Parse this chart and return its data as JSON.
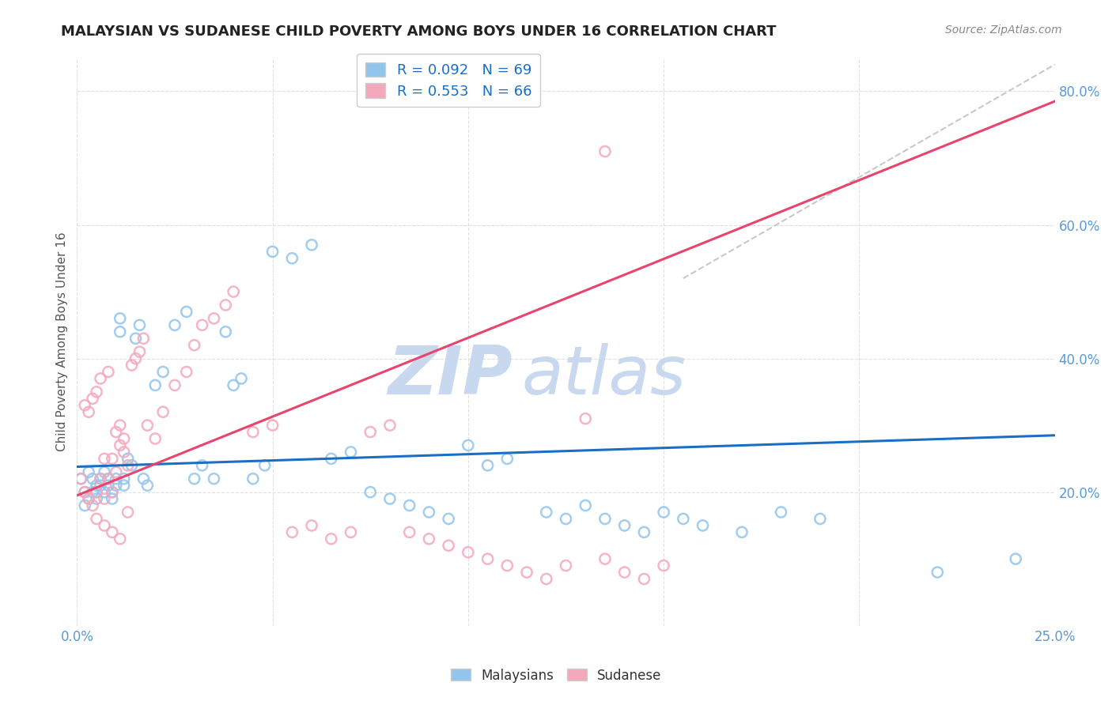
{
  "title": "MALAYSIAN VS SUDANESE CHILD POVERTY AMONG BOYS UNDER 16 CORRELATION CHART",
  "source": "Source: ZipAtlas.com",
  "ylabel": "Child Poverty Among Boys Under 16",
  "ytick_labels": [
    "20.0%",
    "40.0%",
    "60.0%",
    "80.0%"
  ],
  "ytick_values": [
    0.2,
    0.4,
    0.6,
    0.8
  ],
  "xlim": [
    0.0,
    0.25
  ],
  "ylim": [
    0.0,
    0.85
  ],
  "R_malaysian": 0.092,
  "N_malaysian": 69,
  "R_sudanese": 0.553,
  "N_sudanese": 66,
  "color_malaysian": "#92C5EC",
  "color_sudanese": "#F4A8BC",
  "line_color_malaysian": "#1a6fc4",
  "line_color_sudanese": "#e8446e",
  "line_color_diagonal": "#bbbbbb",
  "watermark_zip_color": "#c8d8ee",
  "watermark_atlas_color": "#c8d8ee",
  "background_color": "#ffffff",
  "malaysian_x": [
    0.001,
    0.002,
    0.002,
    0.003,
    0.003,
    0.004,
    0.004,
    0.005,
    0.005,
    0.005,
    0.006,
    0.006,
    0.007,
    0.007,
    0.008,
    0.008,
    0.009,
    0.009,
    0.01,
    0.01,
    0.011,
    0.011,
    0.012,
    0.012,
    0.013,
    0.014,
    0.015,
    0.016,
    0.017,
    0.018,
    0.02,
    0.022,
    0.025,
    0.028,
    0.03,
    0.032,
    0.035,
    0.038,
    0.04,
    0.042,
    0.045,
    0.048,
    0.05,
    0.055,
    0.06,
    0.065,
    0.07,
    0.075,
    0.08,
    0.085,
    0.09,
    0.095,
    0.1,
    0.105,
    0.11,
    0.12,
    0.125,
    0.13,
    0.135,
    0.14,
    0.145,
    0.15,
    0.155,
    0.16,
    0.17,
    0.18,
    0.19,
    0.22,
    0.24
  ],
  "malaysian_y": [
    0.22,
    0.2,
    0.18,
    0.23,
    0.19,
    0.22,
    0.2,
    0.21,
    0.2,
    0.19,
    0.22,
    0.21,
    0.23,
    0.2,
    0.22,
    0.21,
    0.2,
    0.19,
    0.22,
    0.21,
    0.44,
    0.46,
    0.22,
    0.21,
    0.25,
    0.24,
    0.43,
    0.45,
    0.22,
    0.21,
    0.36,
    0.38,
    0.45,
    0.47,
    0.22,
    0.24,
    0.22,
    0.44,
    0.36,
    0.37,
    0.22,
    0.24,
    0.56,
    0.55,
    0.57,
    0.25,
    0.26,
    0.2,
    0.19,
    0.18,
    0.17,
    0.16,
    0.27,
    0.24,
    0.25,
    0.17,
    0.16,
    0.18,
    0.16,
    0.15,
    0.14,
    0.17,
    0.16,
    0.15,
    0.14,
    0.17,
    0.16,
    0.08,
    0.1
  ],
  "sudanese_x": [
    0.001,
    0.002,
    0.002,
    0.003,
    0.003,
    0.004,
    0.004,
    0.005,
    0.005,
    0.006,
    0.006,
    0.007,
    0.007,
    0.008,
    0.008,
    0.009,
    0.009,
    0.01,
    0.01,
    0.011,
    0.011,
    0.012,
    0.012,
    0.013,
    0.014,
    0.015,
    0.016,
    0.017,
    0.018,
    0.02,
    0.022,
    0.025,
    0.028,
    0.03,
    0.032,
    0.035,
    0.038,
    0.04,
    0.045,
    0.05,
    0.055,
    0.06,
    0.065,
    0.07,
    0.075,
    0.08,
    0.085,
    0.09,
    0.095,
    0.1,
    0.105,
    0.11,
    0.115,
    0.12,
    0.125,
    0.13,
    0.135,
    0.14,
    0.145,
    0.15,
    0.005,
    0.007,
    0.009,
    0.011,
    0.013,
    0.135
  ],
  "sudanese_y": [
    0.22,
    0.33,
    0.2,
    0.32,
    0.19,
    0.34,
    0.18,
    0.35,
    0.2,
    0.37,
    0.22,
    0.25,
    0.19,
    0.38,
    0.22,
    0.25,
    0.2,
    0.29,
    0.23,
    0.27,
    0.3,
    0.28,
    0.26,
    0.24,
    0.39,
    0.4,
    0.41,
    0.43,
    0.3,
    0.28,
    0.32,
    0.36,
    0.38,
    0.42,
    0.45,
    0.46,
    0.48,
    0.5,
    0.29,
    0.3,
    0.14,
    0.15,
    0.13,
    0.14,
    0.29,
    0.3,
    0.14,
    0.13,
    0.12,
    0.11,
    0.1,
    0.09,
    0.08,
    0.07,
    0.09,
    0.31,
    0.1,
    0.08,
    0.07,
    0.09,
    0.16,
    0.15,
    0.14,
    0.13,
    0.17,
    0.71
  ]
}
